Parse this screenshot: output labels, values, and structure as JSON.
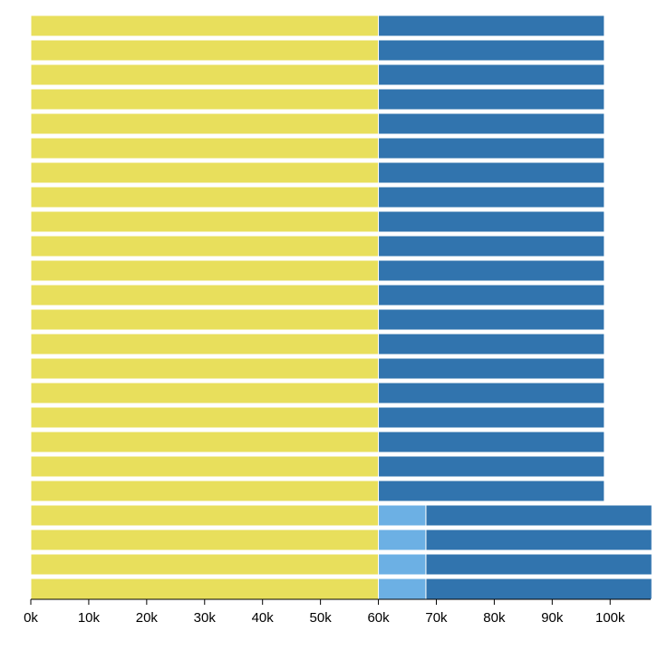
{
  "chart_data": {
    "type": "bar",
    "orientation": "horizontal",
    "stacked": true,
    "title": "",
    "xlabel": "",
    "ylabel": "",
    "xlim": [
      0,
      107000
    ],
    "x_ticks": [
      0,
      10000,
      20000,
      30000,
      40000,
      50000,
      60000,
      70000,
      80000,
      90000,
      100000
    ],
    "x_tick_labels": [
      "0k",
      "10k",
      "20k",
      "30k",
      "40k",
      "50k",
      "60k",
      "70k",
      "80k",
      "90k",
      "100k"
    ],
    "y_axis_tick_labels_visible": false,
    "grid": false,
    "legend": "none",
    "bar_count": 24,
    "colors": {
      "yellow": "#e8df5c",
      "light_blue": "#6cb0e4",
      "dark_blue": "#3174ae"
    },
    "series": [
      {
        "color": "#e8df5c",
        "values": [
          60000,
          60000,
          60000,
          60000,
          60000,
          60000,
          60000,
          60000,
          60000,
          60000,
          60000,
          60000,
          60000,
          60000,
          60000,
          60000,
          60000,
          60000,
          60000,
          60000,
          60000,
          60000,
          60000,
          60000
        ]
      },
      {
        "color": "#6cb0e4",
        "values": [
          0,
          0,
          0,
          0,
          0,
          0,
          0,
          0,
          0,
          0,
          0,
          0,
          0,
          0,
          0,
          0,
          0,
          0,
          0,
          0,
          8200,
          8200,
          8200,
          8200
        ]
      },
      {
        "color": "#3174ae",
        "values": [
          39000,
          39000,
          39000,
          39000,
          39000,
          39000,
          39000,
          39000,
          39000,
          39000,
          39000,
          39000,
          39000,
          39000,
          39000,
          39000,
          39000,
          39000,
          39000,
          39000,
          39000,
          39000,
          39000,
          39000
        ]
      }
    ]
  }
}
